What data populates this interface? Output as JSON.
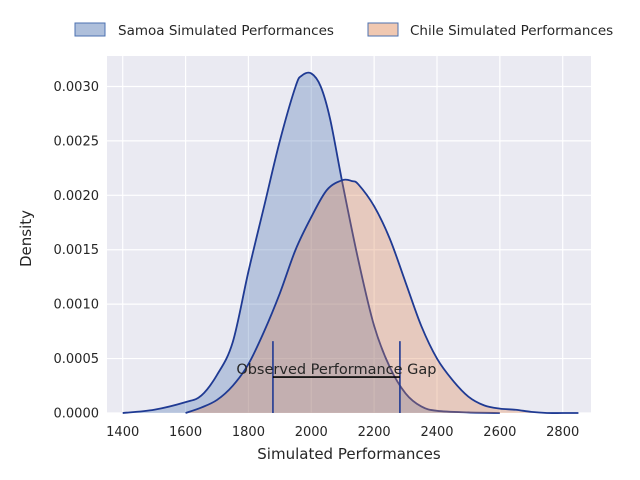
{
  "chart_data": {
    "type": "area",
    "title": "",
    "xlabel": "Simulated Performances",
    "ylabel": "Density",
    "xlim": [
      1350,
      2890
    ],
    "ylim": [
      0,
      0.00328
    ],
    "x_ticks": [
      1400,
      1600,
      1800,
      2000,
      2200,
      2400,
      2600,
      2800
    ],
    "x_tick_labels": [
      "1400",
      "1600",
      "1800",
      "2000",
      "2200",
      "2400",
      "2600",
      "2800"
    ],
    "y_ticks": [
      0,
      0.0005,
      0.001,
      0.0015,
      0.002,
      0.0025,
      0.003
    ],
    "y_tick_labels": [
      "0.0000",
      "0.0005",
      "0.0010",
      "0.0015",
      "0.0020",
      "0.0025",
      "0.0030"
    ],
    "grid": true,
    "legend_position": "top",
    "series": [
      {
        "name": "Samoa Simulated Performances",
        "fill": "#4c72b0",
        "stroke": "#1f3a93",
        "x": [
          1400,
          1500,
          1600,
          1650,
          1700,
          1750,
          1800,
          1850,
          1900,
          1950,
          1970,
          2000,
          2030,
          2060,
          2100,
          2150,
          2200,
          2250,
          2300,
          2350,
          2400,
          2500,
          2600
        ],
        "y": [
          0.0,
          3e-05,
          0.0001,
          0.00016,
          0.00035,
          0.00065,
          0.0013,
          0.0019,
          0.0025,
          0.003,
          0.0031,
          0.00312,
          0.003,
          0.0027,
          0.0021,
          0.0014,
          0.0008,
          0.00042,
          0.00018,
          6e-05,
          2e-05,
          5e-06,
          0.0
        ]
      },
      {
        "name": "Chile Simulated Performances",
        "fill": "#dd8452",
        "stroke": "#1f3a93",
        "x": [
          1600,
          1650,
          1700,
          1750,
          1800,
          1850,
          1900,
          1950,
          2000,
          2050,
          2100,
          2130,
          2150,
          2200,
          2250,
          2300,
          2350,
          2400,
          2450,
          2500,
          2550,
          2600,
          2650,
          2700,
          2750,
          2800,
          2850
        ],
        "y": [
          0.0,
          5e-05,
          0.00012,
          0.00025,
          0.00045,
          0.00075,
          0.0011,
          0.0015,
          0.0018,
          0.00205,
          0.00214,
          0.00213,
          0.0021,
          0.0019,
          0.0016,
          0.0012,
          0.0008,
          0.0005,
          0.0003,
          0.00015,
          7e-05,
          4e-05,
          3e-05,
          1e-05,
          0.0,
          0.0,
          0.0
        ]
      }
    ],
    "annotations": [
      {
        "text": "Observed Performance Gap",
        "x_start": 1878,
        "x_end": 2282,
        "y_line": 0.00033,
        "y_bar_top": 0.00066,
        "text_x": 2080,
        "text_y": 0.00036
      }
    ]
  }
}
